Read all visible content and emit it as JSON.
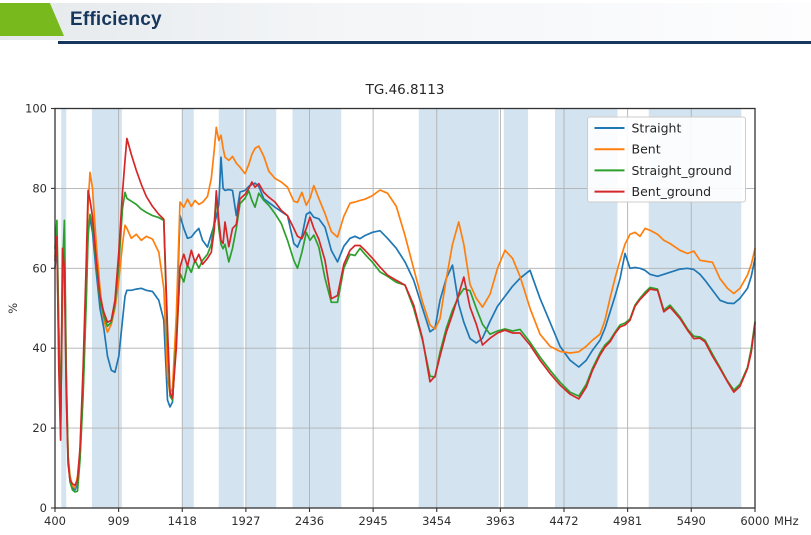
{
  "header": {
    "title": "Efficiency"
  },
  "chart_data": {
    "type": "line",
    "title": "TG.46.8113",
    "ylabel": "%",
    "x_unit_label": "MHz",
    "xlim": [
      400,
      6000
    ],
    "ylim": [
      0,
      100
    ],
    "x_ticks": [
      400,
      909,
      1418,
      1927,
      2436,
      2945,
      3454,
      3963,
      4472,
      4981,
      5490,
      6000
    ],
    "y_ticks": [
      0,
      20,
      40,
      60,
      80,
      100
    ],
    "grid": true,
    "legend_position": "upper right",
    "band_color": "#d3e4f0",
    "grid_color": "#b0b0b0",
    "frame_color": "#333333",
    "highlight_bands_mhz": [
      [
        450,
        490
      ],
      [
        695,
        935
      ],
      [
        1420,
        1510
      ],
      [
        1710,
        1910
      ],
      [
        1930,
        2170
      ],
      [
        2300,
        2690
      ],
      [
        3310,
        3950
      ],
      [
        3990,
        4185
      ],
      [
        4400,
        4900
      ],
      [
        5150,
        5890
      ]
    ],
    "x": [
      400,
      415,
      430,
      445,
      460,
      475,
      490,
      505,
      520,
      540,
      560,
      580,
      600,
      625,
      650,
      665,
      680,
      700,
      730,
      760,
      790,
      820,
      850,
      880,
      910,
      940,
      960,
      975,
      1010,
      1050,
      1090,
      1130,
      1180,
      1230,
      1270,
      1300,
      1320,
      1340,
      1370,
      1400,
      1430,
      1460,
      1490,
      1520,
      1550,
      1580,
      1620,
      1650,
      1675,
      1690,
      1710,
      1728,
      1745,
      1760,
      1790,
      1820,
      1850,
      1880,
      1920,
      1950,
      1975,
      2000,
      2030,
      2070,
      2110,
      2160,
      2210,
      2260,
      2310,
      2340,
      2375,
      2410,
      2440,
      2470,
      2510,
      2560,
      2610,
      2660,
      2710,
      2760,
      2800,
      2840,
      2880,
      2940,
      3000,
      3060,
      3130,
      3200,
      3270,
      3340,
      3400,
      3440,
      3480,
      3530,
      3580,
      3630,
      3670,
      3720,
      3770,
      3820,
      3880,
      3940,
      4000,
      4060,
      4120,
      4200,
      4280,
      4360,
      4440,
      4520,
      4590,
      4650,
      4700,
      4760,
      4800,
      4840,
      4880,
      4920,
      4960,
      5000,
      5040,
      5080,
      5120,
      5160,
      5220,
      5270,
      5320,
      5400,
      5460,
      5510,
      5560,
      5600,
      5660,
      5720,
      5780,
      5830,
      5880,
      5940,
      5970,
      6000
    ],
    "series": [
      {
        "name": "Straight",
        "color": "#1f77b4",
        "values": [
          60,
          66,
          40,
          20,
          55,
          65,
          30,
          12,
          7,
          5,
          4.5,
          6,
          13,
          30,
          54,
          70,
          72.5,
          69,
          59,
          50,
          45,
          38,
          34.5,
          34,
          38,
          47,
          53,
          54.5,
          54.5,
          54.8,
          55,
          54.5,
          54.2,
          52,
          47,
          27,
          25.3,
          26.5,
          45,
          73.2,
          70,
          67.5,
          67.8,
          69,
          70,
          67,
          65.3,
          68.5,
          71,
          73,
          76,
          87.8,
          80,
          79.5,
          79.7,
          79.5,
          73.2,
          79.1,
          79.5,
          80.5,
          81,
          81.3,
          80.5,
          77.4,
          76.5,
          75.3,
          74.2,
          73.2,
          66.2,
          65.3,
          68,
          73.5,
          74.1,
          72.8,
          72.4,
          70.3,
          64.5,
          61.6,
          65.5,
          67.5,
          68,
          67.4,
          68.2,
          69,
          69.4,
          67.5,
          65,
          61.6,
          57,
          50,
          44.1,
          45,
          52,
          57.5,
          60.8,
          51,
          46.5,
          42.4,
          41.3,
          42.5,
          46.7,
          50.5,
          53,
          55.5,
          57.5,
          59.5,
          52.5,
          46.5,
          40.5,
          37,
          35.3,
          37,
          39.5,
          42,
          45,
          49,
          53,
          57.4,
          63.7,
          60,
          60.2,
          60,
          59.5,
          58.5,
          58,
          58.5,
          59,
          59.8,
          60,
          59.7,
          58.5,
          57,
          54.5,
          52,
          51.3,
          51.2,
          52.5,
          55,
          58,
          62.5
        ]
      },
      {
        "name": "Bent",
        "color": "#ff7f0e",
        "values": [
          63,
          69,
          44,
          21,
          58,
          68,
          32,
          13,
          8,
          5.5,
          5,
          8,
          14,
          32,
          58,
          76,
          84,
          80,
          66,
          55,
          47,
          44,
          46,
          50,
          57,
          66,
          70.8,
          70,
          67.5,
          68.5,
          67,
          68,
          67.3,
          64,
          55,
          33,
          28.5,
          30,
          48,
          76.6,
          75.3,
          77.3,
          75.5,
          77,
          76,
          76.5,
          78,
          82.5,
          90,
          95.3,
          92,
          93.3,
          90,
          87.8,
          87,
          88,
          86.3,
          85.3,
          83.7,
          86,
          88.5,
          90,
          90.6,
          88,
          84.3,
          82.5,
          81.6,
          80.3,
          76.8,
          76.5,
          79,
          75.8,
          77.5,
          80.7,
          77.5,
          73.7,
          69.2,
          67.8,
          73,
          76.3,
          76.6,
          77,
          77.3,
          78.2,
          79.6,
          78.8,
          75.5,
          68.2,
          59.9,
          51.6,
          45.8,
          44.8,
          47.4,
          57.4,
          66,
          71.6,
          66,
          56,
          52.5,
          50.3,
          53.5,
          60,
          64.5,
          62.5,
          58,
          50,
          43.5,
          40.5,
          39.2,
          38.8,
          39.1,
          40.5,
          42,
          43.5,
          47,
          52.5,
          57.5,
          62,
          66,
          68.5,
          69,
          68,
          70,
          69.5,
          68.5,
          67,
          66.2,
          64.5,
          63.7,
          64.3,
          62,
          61.8,
          61.5,
          57.4,
          55,
          53.7,
          55,
          58.3,
          61,
          64.9
        ]
      },
      {
        "name": "Straight_ground",
        "color": "#2ca02c",
        "values": [
          65,
          72,
          45,
          22,
          60,
          72,
          34,
          13,
          6.5,
          4.5,
          4,
          4.2,
          12,
          28,
          52,
          68,
          73.5,
          71,
          61,
          52,
          48,
          45.5,
          46.5,
          51,
          61,
          75,
          79,
          77.5,
          76.8,
          76,
          74.8,
          74,
          73.2,
          72.7,
          72,
          42,
          28,
          27,
          42,
          58.7,
          56.6,
          60.8,
          59,
          62,
          60,
          62,
          63.5,
          66,
          72,
          78.4,
          70,
          66,
          64.9,
          66,
          61.6,
          65,
          70,
          76.2,
          77.5,
          79.4,
          77,
          75.3,
          78.8,
          77,
          75.8,
          73.7,
          71.2,
          67,
          62,
          60,
          64,
          69,
          67,
          68.3,
          65.3,
          57.5,
          51.5,
          51.5,
          60,
          63.5,
          63.2,
          65,
          63.5,
          61.5,
          59.1,
          58,
          56.5,
          55.8,
          50,
          42,
          33,
          32.8,
          39,
          45,
          49.5,
          53,
          54.9,
          54.4,
          50,
          46,
          43.5,
          44.3,
          44.8,
          44.3,
          44.7,
          41.5,
          37.8,
          34.5,
          31.5,
          29,
          28,
          31,
          35,
          38.8,
          40.8,
          42,
          44,
          45.8,
          46.3,
          47.3,
          50.8,
          52.5,
          54,
          55.2,
          54.8,
          49.5,
          50.8,
          47.8,
          44.8,
          43,
          42.8,
          42,
          38.5,
          35.2,
          31.8,
          29.5,
          31,
          35.2,
          40,
          46.6
        ]
      },
      {
        "name": "Bent_ground",
        "color": "#d62728",
        "values": [
          62,
          68,
          35,
          17,
          65,
          60,
          28,
          11,
          7,
          6,
          5.7,
          7,
          15,
          35,
          62,
          79.5,
          77,
          73,
          62,
          53,
          49,
          46.5,
          47,
          52,
          64,
          79,
          87,
          92.5,
          88.5,
          84.5,
          81,
          78,
          75.5,
          73.5,
          72.3,
          45,
          29,
          27.5,
          40,
          60.3,
          63.5,
          60.5,
          64.5,
          61.5,
          63.5,
          61,
          62.5,
          64,
          70,
          79.4,
          72,
          67,
          66.2,
          71.6,
          65.4,
          70,
          71,
          77.4,
          78.5,
          80,
          81.6,
          80.3,
          81.2,
          79,
          77.8,
          76.6,
          74.5,
          73.2,
          70,
          68,
          67.4,
          70,
          72.8,
          70,
          67.3,
          62,
          52.4,
          53.2,
          61,
          64.5,
          65.7,
          65.7,
          64.5,
          62.5,
          60.3,
          58.3,
          57,
          55.8,
          50.8,
          42.4,
          31.6,
          33,
          38,
          44,
          48.5,
          53.5,
          57.8,
          50.3,
          46,
          40.8,
          42.5,
          43.8,
          44.5,
          43.8,
          43.8,
          40.8,
          37,
          33.7,
          30.8,
          28.5,
          27.3,
          30.3,
          34.5,
          38.3,
          40.3,
          41.6,
          43.7,
          45.3,
          45.8,
          47,
          50.5,
          52.2,
          53.5,
          54.8,
          54.5,
          49.1,
          50.3,
          47.4,
          44.5,
          42.4,
          42.5,
          41.6,
          38,
          34.9,
          31.6,
          29,
          30.5,
          34.9,
          39,
          46.2
        ]
      }
    ]
  }
}
